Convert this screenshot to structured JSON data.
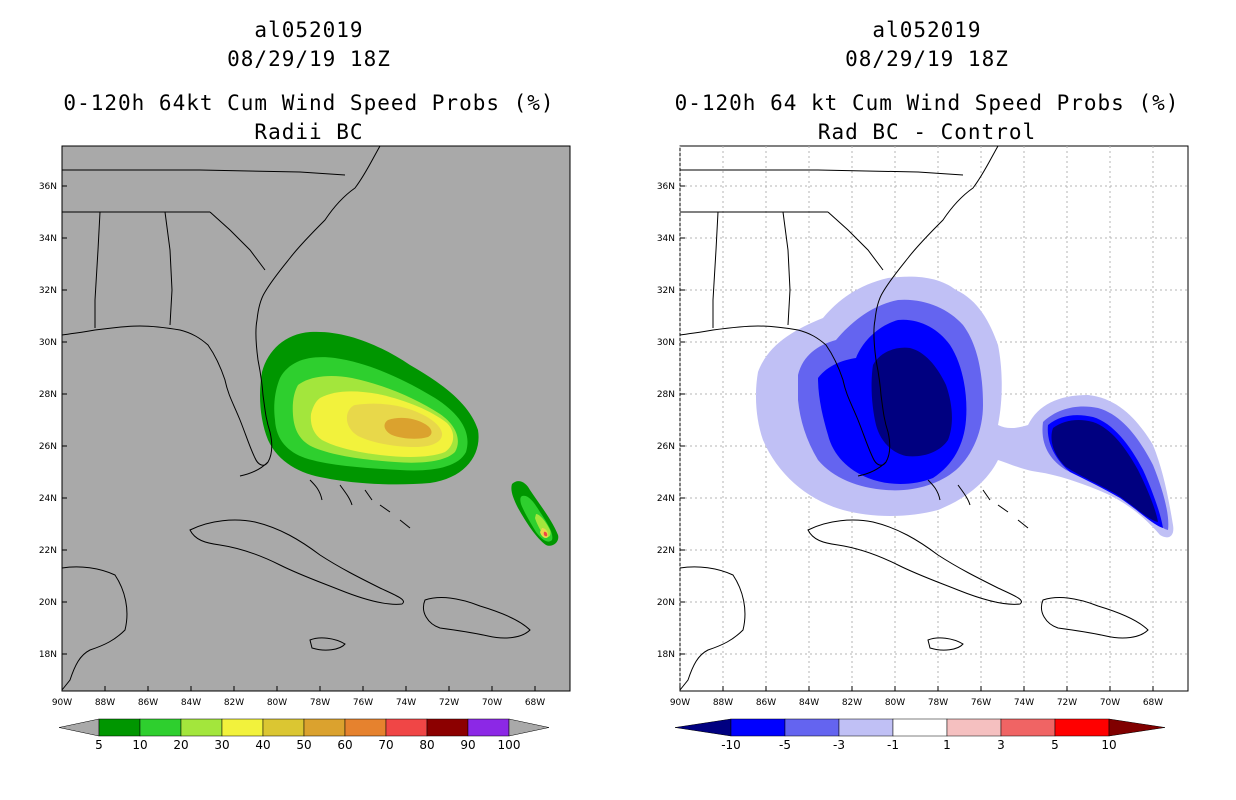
{
  "left": {
    "title1": "al052019",
    "title2": "08/29/19 18Z",
    "title3": "0-120h 64kt Cum Wind Speed Probs (%)",
    "title4": "Radii BC",
    "colorbar": {
      "labels": [
        "5",
        "10",
        "20",
        "30",
        "40",
        "50",
        "60",
        "70",
        "80",
        "90",
        "100"
      ],
      "colors": [
        "#009600",
        "#2ecf2e",
        "#a3e63c",
        "#f2f23c",
        "#dbc632",
        "#dba22e",
        "#e6822e",
        "#f04646",
        "#8c0000",
        "#8c28e6"
      ]
    }
  },
  "right": {
    "title1": "al052019",
    "title2": "08/29/19 18Z",
    "title3": "0-120h 64 kt Cum Wind Speed Probs (%)",
    "title4": "Rad BC - Control",
    "colorbar": {
      "labels": [
        "-10",
        "-5",
        "-3",
        "-1",
        "1",
        "3",
        "5",
        "10"
      ],
      "colors": [
        "#000080",
        "#0000ff",
        "#6464f0",
        "#c0c0f5",
        "#ffffff",
        "#f5c0c0",
        "#f06464",
        "#ff0000",
        "#800000"
      ]
    }
  },
  "map": {
    "lat_labels": [
      "36N",
      "34N",
      "32N",
      "30N",
      "28N",
      "26N",
      "24N",
      "22N",
      "20N",
      "18N"
    ],
    "lon_labels": [
      "90W",
      "88W",
      "86W",
      "84W",
      "82W",
      "80W",
      "78W",
      "76W",
      "74W",
      "72W",
      "70W",
      "68W"
    ]
  },
  "colors": {
    "left_background": "#a9a9a9",
    "coast": "#000000"
  }
}
